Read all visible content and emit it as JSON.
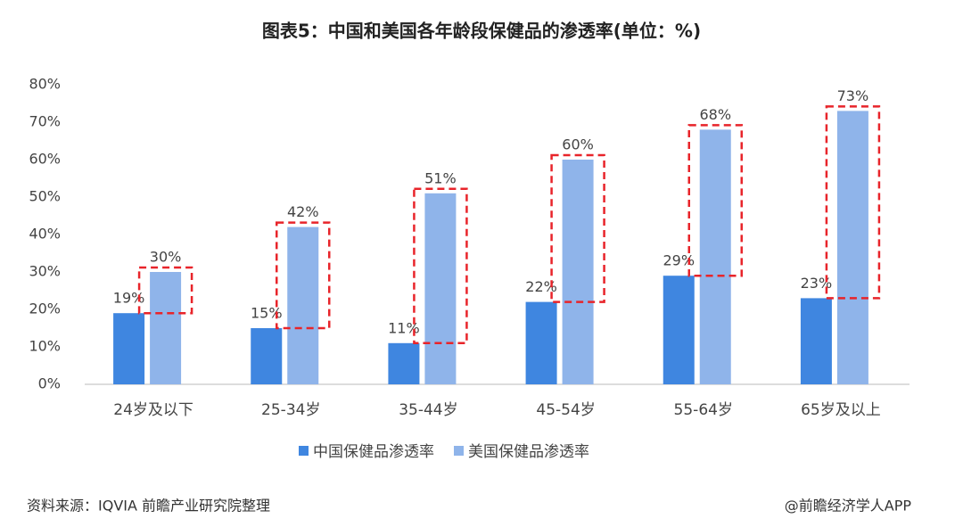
{
  "chart_data": {
    "type": "bar",
    "title": "图表5：中国和美国各年龄段保健品的渗透率(单位：%)",
    "categories": [
      "24岁及以下",
      "25-34岁",
      "35-44岁",
      "45-54岁",
      "55-64岁",
      "65岁及以上"
    ],
    "series": [
      {
        "name": "中国保健品渗透率",
        "color": "#3f86e0",
        "values": [
          19,
          15,
          11,
          22,
          29,
          23
        ],
        "value_labels": [
          "19%",
          "15%",
          "11%",
          "22%",
          "29%",
          "23%"
        ]
      },
      {
        "name": "美国保健品渗透率",
        "color": "#8fb4ea",
        "values": [
          30,
          42,
          51,
          60,
          68,
          73
        ],
        "value_labels": [
          "30%",
          "42%",
          "51%",
          "60%",
          "68%",
          "73%"
        ]
      }
    ],
    "ylim": [
      0,
      80
    ],
    "yticks": [
      {
        "value": 0,
        "label": "0%"
      },
      {
        "value": 10,
        "label": "10%"
      },
      {
        "value": 20,
        "label": "20%"
      },
      {
        "value": 30,
        "label": "30%"
      },
      {
        "value": 40,
        "label": "40%"
      },
      {
        "value": 50,
        "label": "50%"
      },
      {
        "value": 60,
        "label": "60%"
      },
      {
        "value": 70,
        "label": "70%"
      },
      {
        "value": 80,
        "label": "80%"
      }
    ],
    "grid": false,
    "legend": "bottom",
    "highlight_color": "#e8242a"
  },
  "footer": {
    "source": "资料来源：IQVIA 前瞻产业研究院整理",
    "credit": "@前瞻经济学人APP"
  }
}
